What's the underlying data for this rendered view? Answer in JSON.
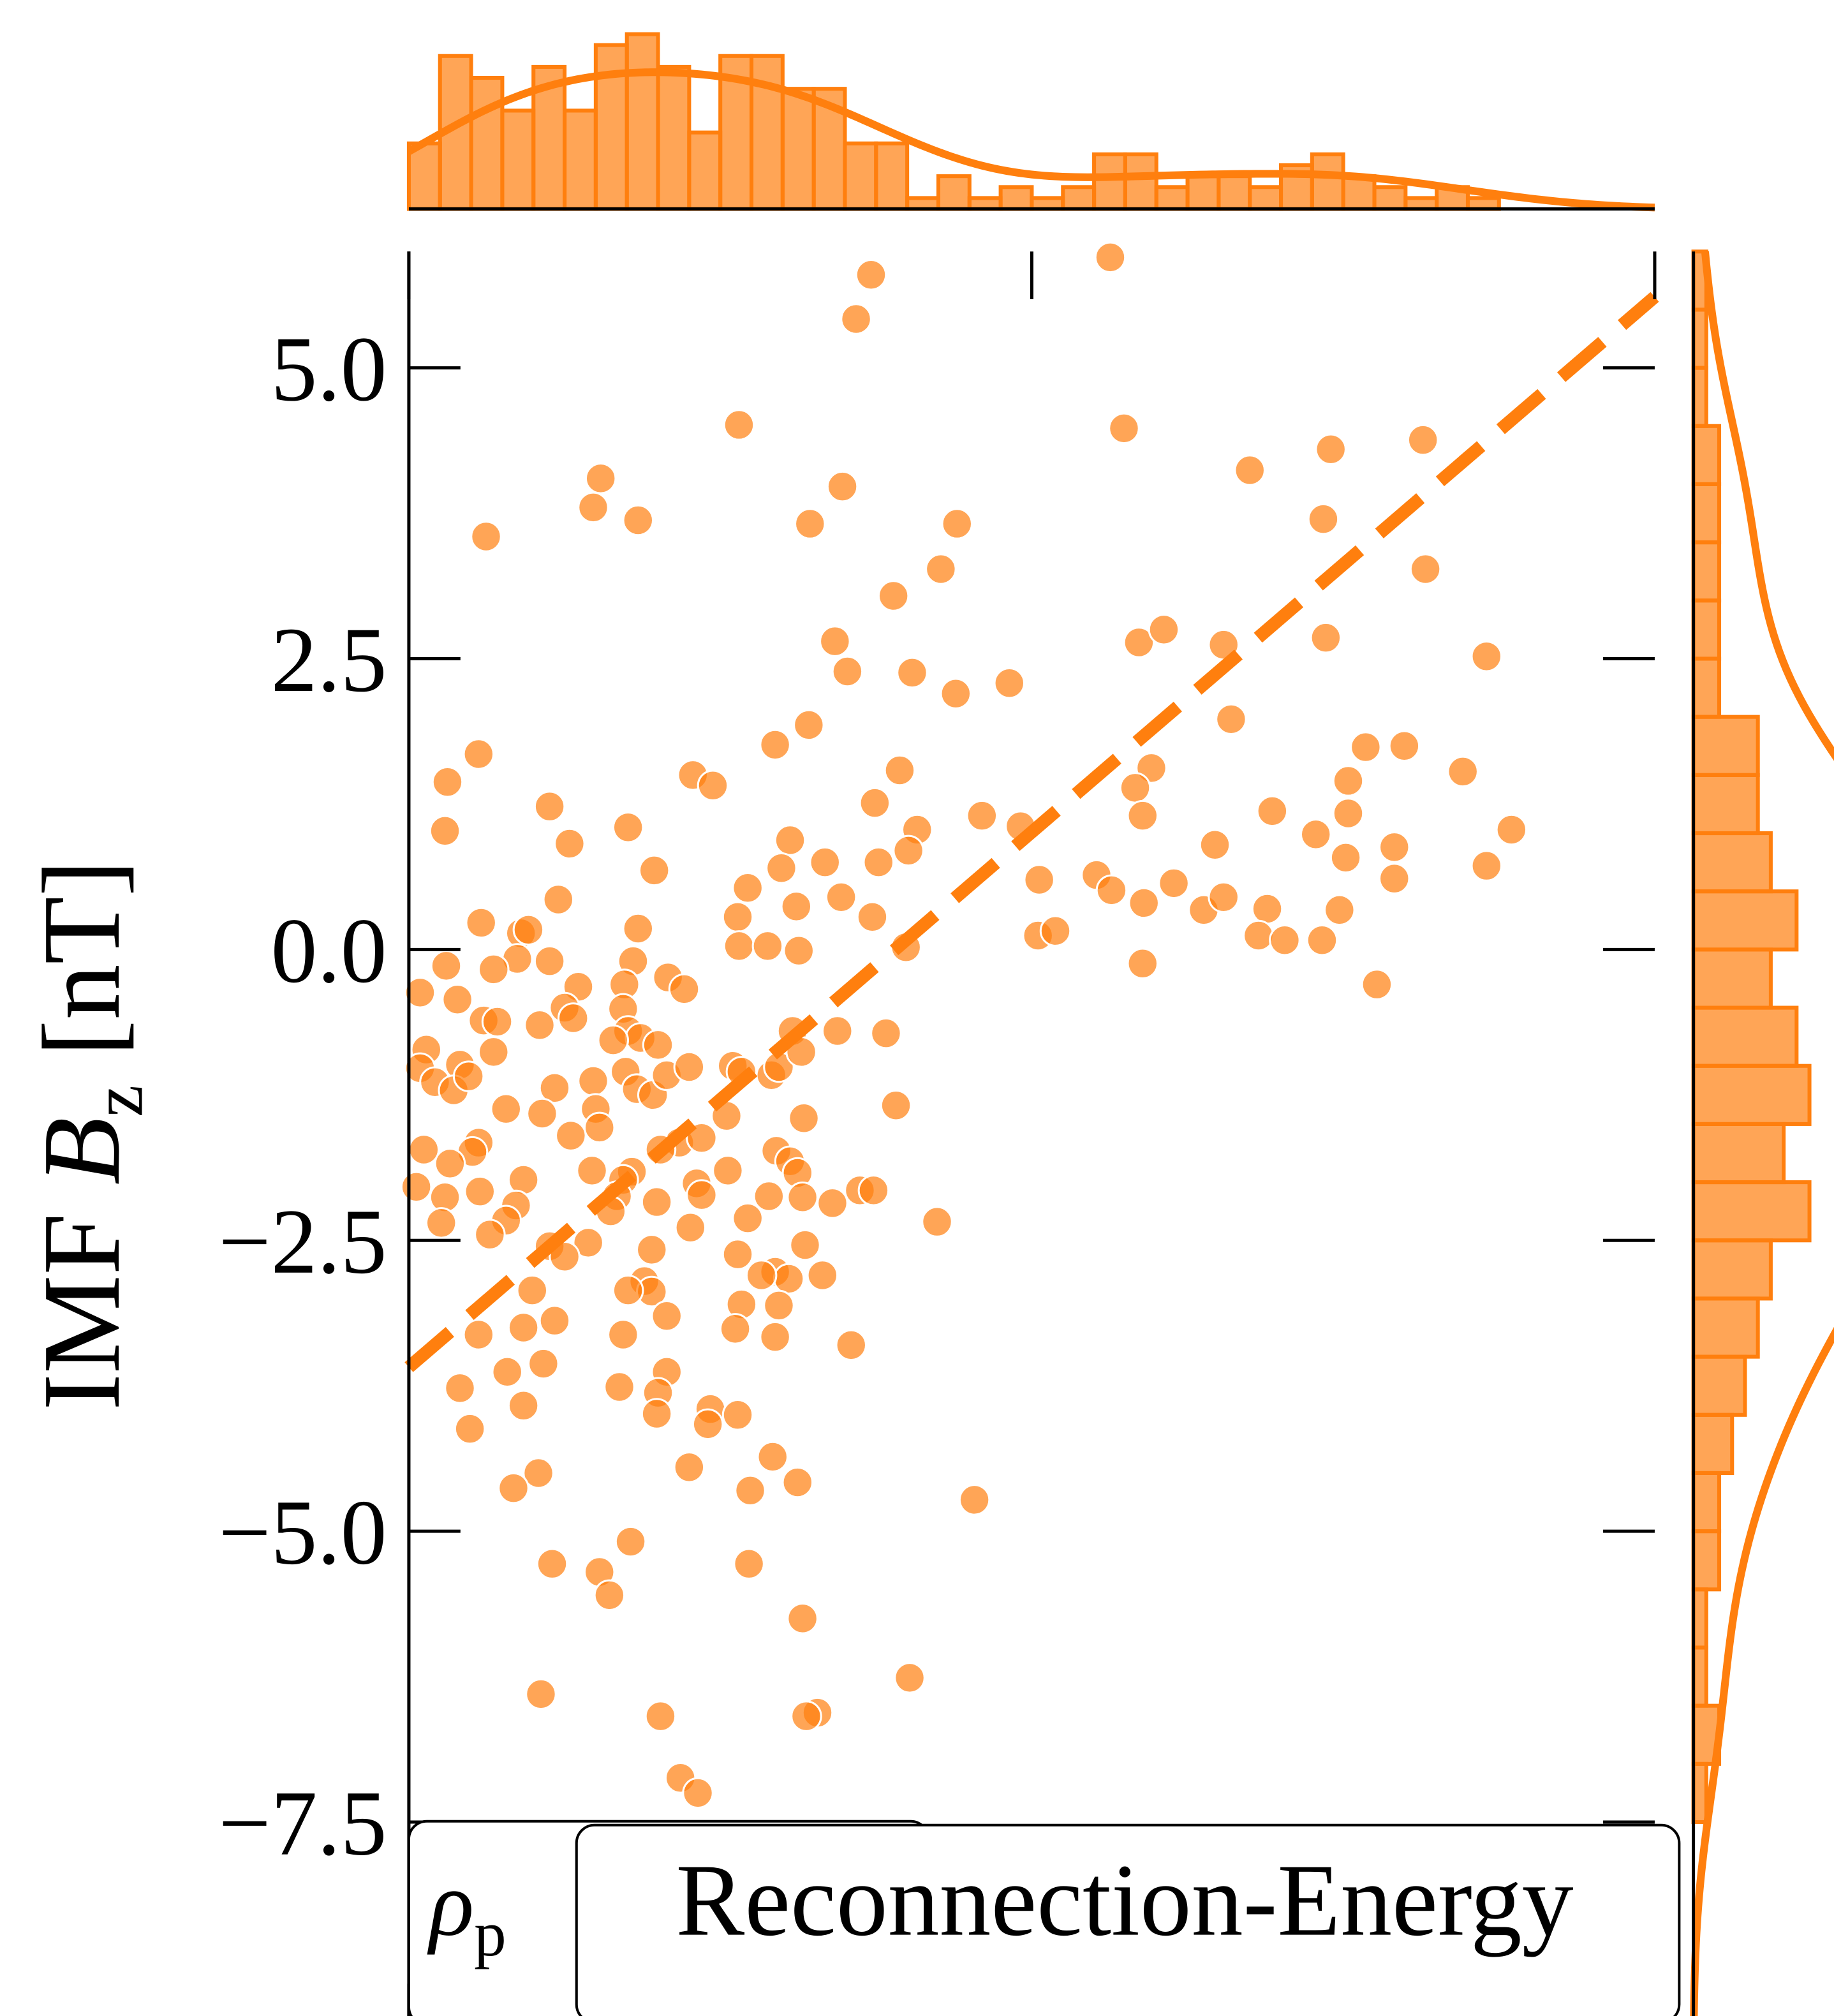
{
  "chart_data": {
    "type": "scatter",
    "color": "#ff7f0e",
    "ylabel": {
      "prefix": "IMF",
      "symbol": "B",
      "subscript": "z",
      "unit": "[nT]"
    },
    "annotations": [
      {
        "symbol": "ρ",
        "subscript": "p"
      },
      {
        "text": "Reconnection-Energy"
      }
    ],
    "xlim": [
      0,
      100
    ],
    "xticks": [
      0,
      50,
      100
    ],
    "ylim": [
      -9.3,
      6.0
    ],
    "yticks": [
      {
        "value": -7.5,
        "label": "−7.5"
      },
      {
        "value": -5,
        "label": "−5.0"
      },
      {
        "value": -2.5,
        "label": "−2.5"
      },
      {
        "value": 0,
        "label": "0.0"
      },
      {
        "value": 2.5,
        "label": "2.5"
      },
      {
        "value": 5,
        "label": "5.0"
      }
    ],
    "x": [
      37.1,
      56.3,
      35.9,
      26.5,
      57.4,
      15.4,
      14.8,
      18.4,
      6.2,
      34.8,
      32.2,
      44.0,
      42.7,
      38.9,
      67.5,
      74.0,
      81.4,
      73.4,
      81.6,
      34.2,
      35.2,
      40.4,
      43.9,
      48.2,
      58.6,
      60.6,
      65.4,
      73.6,
      86.5,
      32.1,
      29.4,
      66.0,
      76.8,
      79.9,
      84.6,
      75.4,
      5.6,
      3.1,
      2.9,
      22.8,
      24.4,
      39.4,
      37.4,
      40.8,
      46.0,
      49.1,
      59.6,
      58.3,
      58.9,
      69.3,
      75.4,
      72.8,
      88.5,
      79.1,
      86.5,
      79.1,
      75.2,
      64.7,
      61.4,
      11.3,
      17.6,
      12.9,
      19.7,
      30.6,
      29.9,
      33.4,
      37.7,
      40.1,
      27.2,
      26.4,
      31.1,
      34.7,
      37.2,
      26.5,
      28.8,
      31.3,
      39.9,
      50.6,
      55.2,
      56.4,
      59.0,
      63.8,
      65.4,
      68.9,
      68.2,
      70.3,
      73.3,
      74.7,
      50.5,
      51.9,
      58.9,
      77.7,
      12.0,
      5.8,
      9.0,
      9.6,
      8.7,
      6.8,
      3.0,
      11.3,
      18.4,
      18.0,
      20.8,
      17.3,
      13.6,
      22.1,
      0.9,
      3.9,
      12.5,
      13.2,
      6.0,
      7.1,
      10.5,
      17.2,
      17.6,
      18.6,
      20.0,
      16.4,
      6.8,
      1.4,
      4.1,
      0.9,
      2.1,
      3.6,
      4.8,
      11.7,
      14.8,
      17.4,
      18.3,
      19.6,
      20.7,
      22.5,
      26.0,
      26.7,
      29.1,
      29.7,
      30.8,
      31.5,
      34.4,
      38.3,
      39.1,
      7.8,
      10.7,
      15.0,
      15.3,
      13.0,
      5.6,
      5.1,
      1.2,
      3.3,
      21.7,
      20.2,
      25.5,
      23.5,
      31.7,
      29.5,
      30.6,
      31.2,
      14.7,
      17.9,
      17.2,
      25.6,
      9.2,
      0.6,
      2.9,
      5.7,
      16.7,
      19.9,
      23.1,
      23.5,
      28.9,
      31.6,
      36.2,
      37.3,
      34.0,
      8.6,
      7.8,
      2.6,
      6.5,
      16.2,
      27.2,
      22.6,
      42.4,
      11.3,
      14.4,
      12.5,
      19.5,
      26.4,
      31.8,
      29.4,
      30.5,
      33.2,
      28.3,
      18.9,
      19.5,
      17.6,
      9.9,
      26.7,
      29.7,
      20.7,
      9.2,
      11.7,
      5.6,
      26.2,
      29.4,
      17.2,
      35.5,
      10.8,
      7.9,
      20.7,
      16.9,
      20.0,
      4.1,
      9.2,
      24.2,
      19.9,
      26.4,
      24.0,
      4.9,
      29.2,
      22.5,
      10.4,
      31.2,
      8.4,
      27.4,
      45.4,
      17.8,
      11.5,
      27.3,
      15.3,
      16.1,
      31.6,
      10.6,
      40.2,
      20.2,
      32.8,
      31.9,
      21.8,
      23.2
    ],
    "y": [
      5.8,
      5.95,
      5.42,
      4.51,
      4.48,
      4.05,
      3.8,
      3.69,
      3.55,
      3.98,
      3.66,
      3.66,
      3.27,
      3.04,
      4.12,
      4.3,
      4.38,
      3.7,
      3.27,
      2.65,
      2.39,
      2.38,
      2.2,
      2.29,
      2.64,
      2.75,
      2.62,
      2.68,
      2.52,
      1.93,
      1.76,
      1.98,
      1.74,
      1.75,
      1.53,
      1.45,
      1.68,
      1.44,
      1.02,
      1.5,
      1.41,
      1.54,
      1.26,
      1.03,
      1.15,
      1.06,
      1.56,
      1.39,
      1.15,
      1.19,
      1.17,
      0.99,
      1.03,
      0.88,
      0.72,
      0.61,
      0.79,
      0.9,
      0.57,
      1.23,
      1.05,
      0.91,
      0.68,
      0.94,
      0.7,
      0.75,
      0.75,
      0.85,
      0.53,
      0.28,
      0.37,
      0.45,
      0.28,
      0.03,
      0.03,
      -0.01,
      0.02,
      0.6,
      0.64,
      0.51,
      0.4,
      0.34,
      0.45,
      0.35,
      0.12,
      0.08,
      0.08,
      0.34,
      0.12,
      0.16,
      -0.12,
      -0.3,
      0.43,
      0.23,
      0.14,
      0.17,
      -0.08,
      -0.17,
      -0.14,
      -0.1,
      0.18,
      -0.1,
      -0.24,
      -0.3,
      -0.32,
      -0.34,
      -0.37,
      -0.43,
      -0.5,
      -0.59,
      -0.61,
      -0.62,
      -0.65,
      -0.51,
      -0.7,
      -0.76,
      -0.82,
      -0.78,
      -0.88,
      -0.86,
      -0.99,
      -1.02,
      -1.14,
      -1.21,
      -1.09,
      -1.19,
      -1.13,
      -1.05,
      -1.2,
      -1.25,
      -1.08,
      -1.01,
      -1.0,
      -1.05,
      -1.08,
      -1.01,
      -0.7,
      -0.88,
      -0.7,
      -0.72,
      -1.34,
      -1.37,
      -1.41,
      -1.37,
      -1.53,
      -1.6,
      -1.66,
      -1.74,
      -1.72,
      -1.84,
      -1.66,
      -1.72,
      -1.43,
      -1.62,
      -1.45,
      -1.73,
      -1.82,
      -1.92,
      -1.9,
      -1.91,
      -1.98,
      -1.9,
      -1.98,
      -2.04,
      -2.13,
      -2.08,
      -2.12,
      -2.17,
      -2.01,
      -2.11,
      -2.12,
      -2.13,
      -2.07,
      -2.07,
      -2.18,
      -2.2,
      -2.33,
      -2.35,
      -2.45,
      -2.25,
      -2.31,
      -2.39,
      -2.34,
      -2.55,
      -2.52,
      -2.64,
      -2.58,
      -2.62,
      -2.54,
      -2.77,
      -2.83,
      -2.8,
      -2.8,
      -2.85,
      -2.94,
      -2.93,
      -2.93,
      -3.05,
      -3.06,
      -3.15,
      -3.25,
      -3.19,
      -3.31,
      -3.26,
      -3.33,
      -3.31,
      -3.4,
      -3.56,
      -3.63,
      -3.63,
      -3.76,
      -3.81,
      -3.77,
      -3.92,
      -3.95,
      -3.99,
      -4.0,
      -4.08,
      -4.12,
      -4.36,
      -4.45,
      -4.5,
      -4.58,
      -4.63,
      -4.65,
      -4.73,
      -5.09,
      -5.28,
      -5.28,
      -5.35,
      -5.55,
      -5.75,
      -6.4,
      -6.26,
      -6.59,
      -6.56,
      -6.59,
      -7.12,
      -7.25
    ],
    "fit": {
      "x": [
        0,
        100
      ],
      "y": [
        -3.59,
        5.61
      ]
    },
    "marginal_x": {
      "type": "histogram",
      "ylim": [
        0,
        17
      ],
      "bins": [
        0,
        2.5,
        5,
        7.5,
        10,
        12.5,
        15,
        17.5,
        20,
        22.5,
        25,
        27.5,
        30,
        32.5,
        35,
        37.5,
        40,
        42.5,
        45,
        47.5,
        50,
        52.5,
        55,
        57.5,
        60,
        62.5,
        65,
        67.5,
        70,
        72.5,
        75,
        77.5,
        80,
        82.5,
        85,
        87.5
      ],
      "counts": [
        6,
        14,
        12,
        9,
        13,
        9,
        15,
        16,
        13,
        7,
        14,
        14,
        11,
        11,
        6,
        6,
        1,
        3,
        1,
        2,
        1,
        2,
        5,
        5,
        2,
        3,
        3,
        2,
        4,
        5,
        3,
        2,
        1,
        2,
        1
      ]
    },
    "marginal_y": {
      "type": "histogram",
      "xlim": [
        0,
        10
      ],
      "bins": [
        -7.5,
        -7,
        -6.5,
        -6,
        -5.5,
        -5,
        -4.5,
        -4,
        -3.5,
        -3,
        -2.5,
        -2,
        -1.5,
        -1,
        -0.5,
        0,
        0.5,
        1,
        1.5,
        2,
        2.5,
        3,
        3.5,
        4,
        4.5,
        5,
        5.5,
        6
      ],
      "counts": [
        1,
        2,
        1,
        1,
        2,
        2,
        3,
        4,
        5,
        6,
        9,
        7,
        9,
        8,
        6,
        8,
        6,
        5,
        5,
        2,
        2,
        2,
        2,
        2,
        1,
        1,
        1
      ]
    }
  }
}
